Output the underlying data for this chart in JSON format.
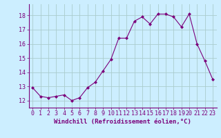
{
  "x": [
    0,
    1,
    2,
    3,
    4,
    5,
    6,
    7,
    8,
    9,
    10,
    11,
    12,
    13,
    14,
    15,
    16,
    17,
    18,
    19,
    20,
    21,
    22,
    23
  ],
  "y": [
    12.9,
    12.3,
    12.2,
    12.3,
    12.4,
    12.0,
    12.2,
    12.9,
    13.3,
    14.1,
    14.9,
    16.4,
    16.4,
    17.6,
    17.9,
    17.4,
    18.1,
    18.1,
    17.9,
    17.2,
    18.1,
    16.0,
    14.8,
    13.5
  ],
  "line_color": "#7b007b",
  "marker": "D",
  "marker_size": 2.0,
  "bg_color": "#cceeff",
  "grid_color": "#aacccc",
  "xlabel": "Windchill (Refroidissement éolien,°C)",
  "xlabel_fontsize": 6.5,
  "tick_fontsize": 6.0,
  "xlim": [
    -0.5,
    23.5
  ],
  "ylim": [
    11.5,
    18.8
  ],
  "yticks": [
    12,
    13,
    14,
    15,
    16,
    17,
    18
  ],
  "xticks": [
    0,
    1,
    2,
    3,
    4,
    5,
    6,
    7,
    8,
    9,
    10,
    11,
    12,
    13,
    14,
    15,
    16,
    17,
    18,
    19,
    20,
    21,
    22,
    23
  ]
}
